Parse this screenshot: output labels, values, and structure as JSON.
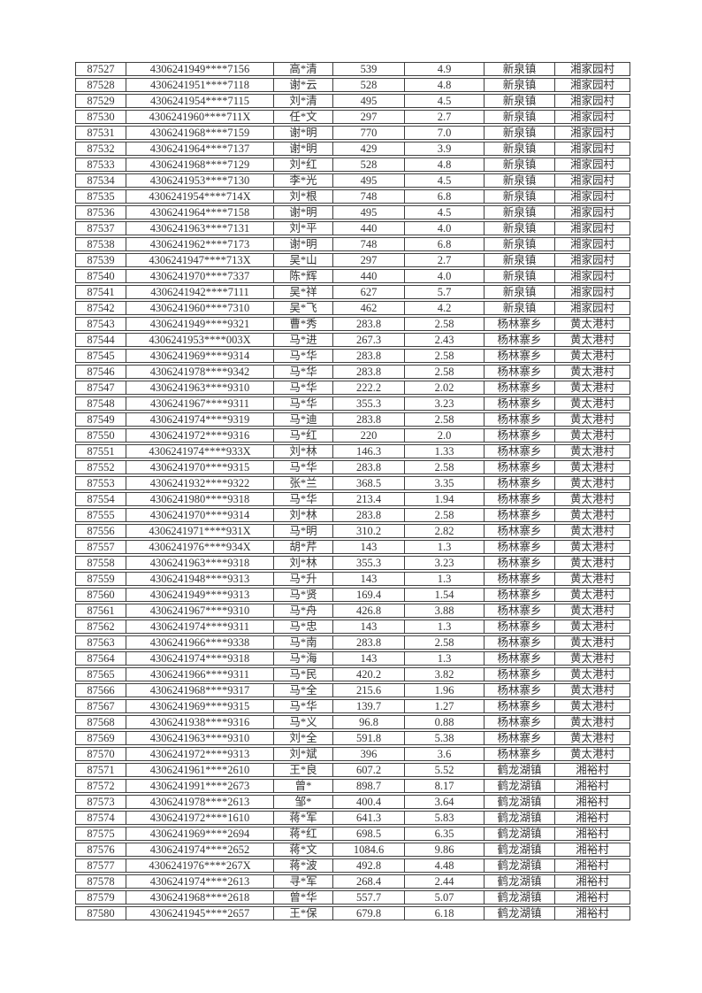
{
  "page": {
    "background_color": "#ffffff",
    "text_color": "#353535",
    "border_color": "#3f3f3f"
  },
  "table": {
    "rows": [
      [
        "87527",
        "4306241949****7156",
        "高*清",
        "539",
        "4.9",
        "新泉镇",
        "湘家园村"
      ],
      [
        "87528",
        "4306241951****7118",
        "谢*云",
        "528",
        "4.8",
        "新泉镇",
        "湘家园村"
      ],
      [
        "87529",
        "4306241954****7115",
        "刘*清",
        "495",
        "4.5",
        "新泉镇",
        "湘家园村"
      ],
      [
        "87530",
        "4306241960****711X",
        "任*文",
        "297",
        "2.7",
        "新泉镇",
        "湘家园村"
      ],
      [
        "87531",
        "4306241968****7159",
        "谢*明",
        "770",
        "7.0",
        "新泉镇",
        "湘家园村"
      ],
      [
        "87532",
        "4306241964****7137",
        "谢*明",
        "429",
        "3.9",
        "新泉镇",
        "湘家园村"
      ],
      [
        "87533",
        "4306241968****7129",
        "刘*红",
        "528",
        "4.8",
        "新泉镇",
        "湘家园村"
      ],
      [
        "87534",
        "4306241953****7130",
        "李*光",
        "495",
        "4.5",
        "新泉镇",
        "湘家园村"
      ],
      [
        "87535",
        "4306241954****714X",
        "刘*根",
        "748",
        "6.8",
        "新泉镇",
        "湘家园村"
      ],
      [
        "87536",
        "4306241964****7158",
        "谢*明",
        "495",
        "4.5",
        "新泉镇",
        "湘家园村"
      ],
      [
        "87537",
        "4306241963****7131",
        "刘*平",
        "440",
        "4.0",
        "新泉镇",
        "湘家园村"
      ],
      [
        "87538",
        "4306241962****7173",
        "谢*明",
        "748",
        "6.8",
        "新泉镇",
        "湘家园村"
      ],
      [
        "87539",
        "4306241947****713X",
        "吴*山",
        "297",
        "2.7",
        "新泉镇",
        "湘家园村"
      ],
      [
        "87540",
        "4306241970****7337",
        "陈*辉",
        "440",
        "4.0",
        "新泉镇",
        "湘家园村"
      ],
      [
        "87541",
        "4306241942****7111",
        "吴*祥",
        "627",
        "5.7",
        "新泉镇",
        "湘家园村"
      ],
      [
        "87542",
        "4306241960****7310",
        "吴*飞",
        "462",
        "4.2",
        "新泉镇",
        "湘家园村"
      ],
      [
        "87543",
        "4306241949****9321",
        "曹*秀",
        "283.8",
        "2.58",
        "杨林寨乡",
        "黄太港村"
      ],
      [
        "87544",
        "4306241953****003X",
        "马*进",
        "267.3",
        "2.43",
        "杨林寨乡",
        "黄太港村"
      ],
      [
        "87545",
        "4306241969****9314",
        "马*华",
        "283.8",
        "2.58",
        "杨林寨乡",
        "黄太港村"
      ],
      [
        "87546",
        "4306241978****9342",
        "马*华",
        "283.8",
        "2.58",
        "杨林寨乡",
        "黄太港村"
      ],
      [
        "87547",
        "4306241963****9310",
        "马*华",
        "222.2",
        "2.02",
        "杨林寨乡",
        "黄太港村"
      ],
      [
        "87548",
        "4306241967****9311",
        "马*华",
        "355.3",
        "3.23",
        "杨林寨乡",
        "黄太港村"
      ],
      [
        "87549",
        "4306241974****9319",
        "马*迪",
        "283.8",
        "2.58",
        "杨林寨乡",
        "黄太港村"
      ],
      [
        "87550",
        "4306241972****9316",
        "马*红",
        "220",
        "2.0",
        "杨林寨乡",
        "黄太港村"
      ],
      [
        "87551",
        "4306241974****933X",
        "刘*林",
        "146.3",
        "1.33",
        "杨林寨乡",
        "黄太港村"
      ],
      [
        "87552",
        "4306241970****9315",
        "马*华",
        "283.8",
        "2.58",
        "杨林寨乡",
        "黄太港村"
      ],
      [
        "87553",
        "4306241932****9322",
        "张*兰",
        "368.5",
        "3.35",
        "杨林寨乡",
        "黄太港村"
      ],
      [
        "87554",
        "4306241980****9318",
        "马*华",
        "213.4",
        "1.94",
        "杨林寨乡",
        "黄太港村"
      ],
      [
        "87555",
        "4306241970****9314",
        "刘*林",
        "283.8",
        "2.58",
        "杨林寨乡",
        "黄太港村"
      ],
      [
        "87556",
        "4306241971****931X",
        "马*明",
        "310.2",
        "2.82",
        "杨林寨乡",
        "黄太港村"
      ],
      [
        "87557",
        "4306241976****934X",
        "胡*芹",
        "143",
        "1.3",
        "杨林寨乡",
        "黄太港村"
      ],
      [
        "87558",
        "4306241963****9318",
        "刘*林",
        "355.3",
        "3.23",
        "杨林寨乡",
        "黄太港村"
      ],
      [
        "87559",
        "4306241948****9313",
        "马*升",
        "143",
        "1.3",
        "杨林寨乡",
        "黄太港村"
      ],
      [
        "87560",
        "4306241949****9313",
        "马*贤",
        "169.4",
        "1.54",
        "杨林寨乡",
        "黄太港村"
      ],
      [
        "87561",
        "4306241967****9310",
        "马*舟",
        "426.8",
        "3.88",
        "杨林寨乡",
        "黄太港村"
      ],
      [
        "87562",
        "4306241974****9311",
        "马*忠",
        "143",
        "1.3",
        "杨林寨乡",
        "黄太港村"
      ],
      [
        "87563",
        "4306241966****9338",
        "马*南",
        "283.8",
        "2.58",
        "杨林寨乡",
        "黄太港村"
      ],
      [
        "87564",
        "4306241974****9318",
        "马*海",
        "143",
        "1.3",
        "杨林寨乡",
        "黄太港村"
      ],
      [
        "87565",
        "4306241966****9311",
        "马*民",
        "420.2",
        "3.82",
        "杨林寨乡",
        "黄太港村"
      ],
      [
        "87566",
        "4306241968****9317",
        "马*全",
        "215.6",
        "1.96",
        "杨林寨乡",
        "黄太港村"
      ],
      [
        "87567",
        "4306241969****9315",
        "马*华",
        "139.7",
        "1.27",
        "杨林寨乡",
        "黄太港村"
      ],
      [
        "87568",
        "4306241938****9316",
        "马*义",
        "96.8",
        "0.88",
        "杨林寨乡",
        "黄太港村"
      ],
      [
        "87569",
        "4306241963****9310",
        "刘*全",
        "591.8",
        "5.38",
        "杨林寨乡",
        "黄太港村"
      ],
      [
        "87570",
        "4306241972****9313",
        "刘*斌",
        "396",
        "3.6",
        "杨林寨乡",
        "黄太港村"
      ],
      [
        "87571",
        "4306241961****2610",
        "王*良",
        "607.2",
        "5.52",
        "鹤龙湖镇",
        "湘裕村"
      ],
      [
        "87572",
        "4306241991****2673",
        "曾*",
        "898.7",
        "8.17",
        "鹤龙湖镇",
        "湘裕村"
      ],
      [
        "87573",
        "4306241978****2613",
        "邹*",
        "400.4",
        "3.64",
        "鹤龙湖镇",
        "湘裕村"
      ],
      [
        "87574",
        "4306241972****1610",
        "蒋*军",
        "641.3",
        "5.83",
        "鹤龙湖镇",
        "湘裕村"
      ],
      [
        "87575",
        "4306241969****2694",
        "蒋*红",
        "698.5",
        "6.35",
        "鹤龙湖镇",
        "湘裕村"
      ],
      [
        "87576",
        "4306241974****2652",
        "蒋*文",
        "1084.6",
        "9.86",
        "鹤龙湖镇",
        "湘裕村"
      ],
      [
        "87577",
        "4306241976****267X",
        "蒋*波",
        "492.8",
        "4.48",
        "鹤龙湖镇",
        "湘裕村"
      ],
      [
        "87578",
        "4306241974****2613",
        "寻*军",
        "268.4",
        "2.44",
        "鹤龙湖镇",
        "湘裕村"
      ],
      [
        "87579",
        "4306241968****2618",
        "曾*华",
        "557.7",
        "5.07",
        "鹤龙湖镇",
        "湘裕村"
      ],
      [
        "87580",
        "4306241945****2657",
        "王*保",
        "679.8",
        "6.18",
        "鹤龙湖镇",
        "湘裕村"
      ]
    ]
  }
}
